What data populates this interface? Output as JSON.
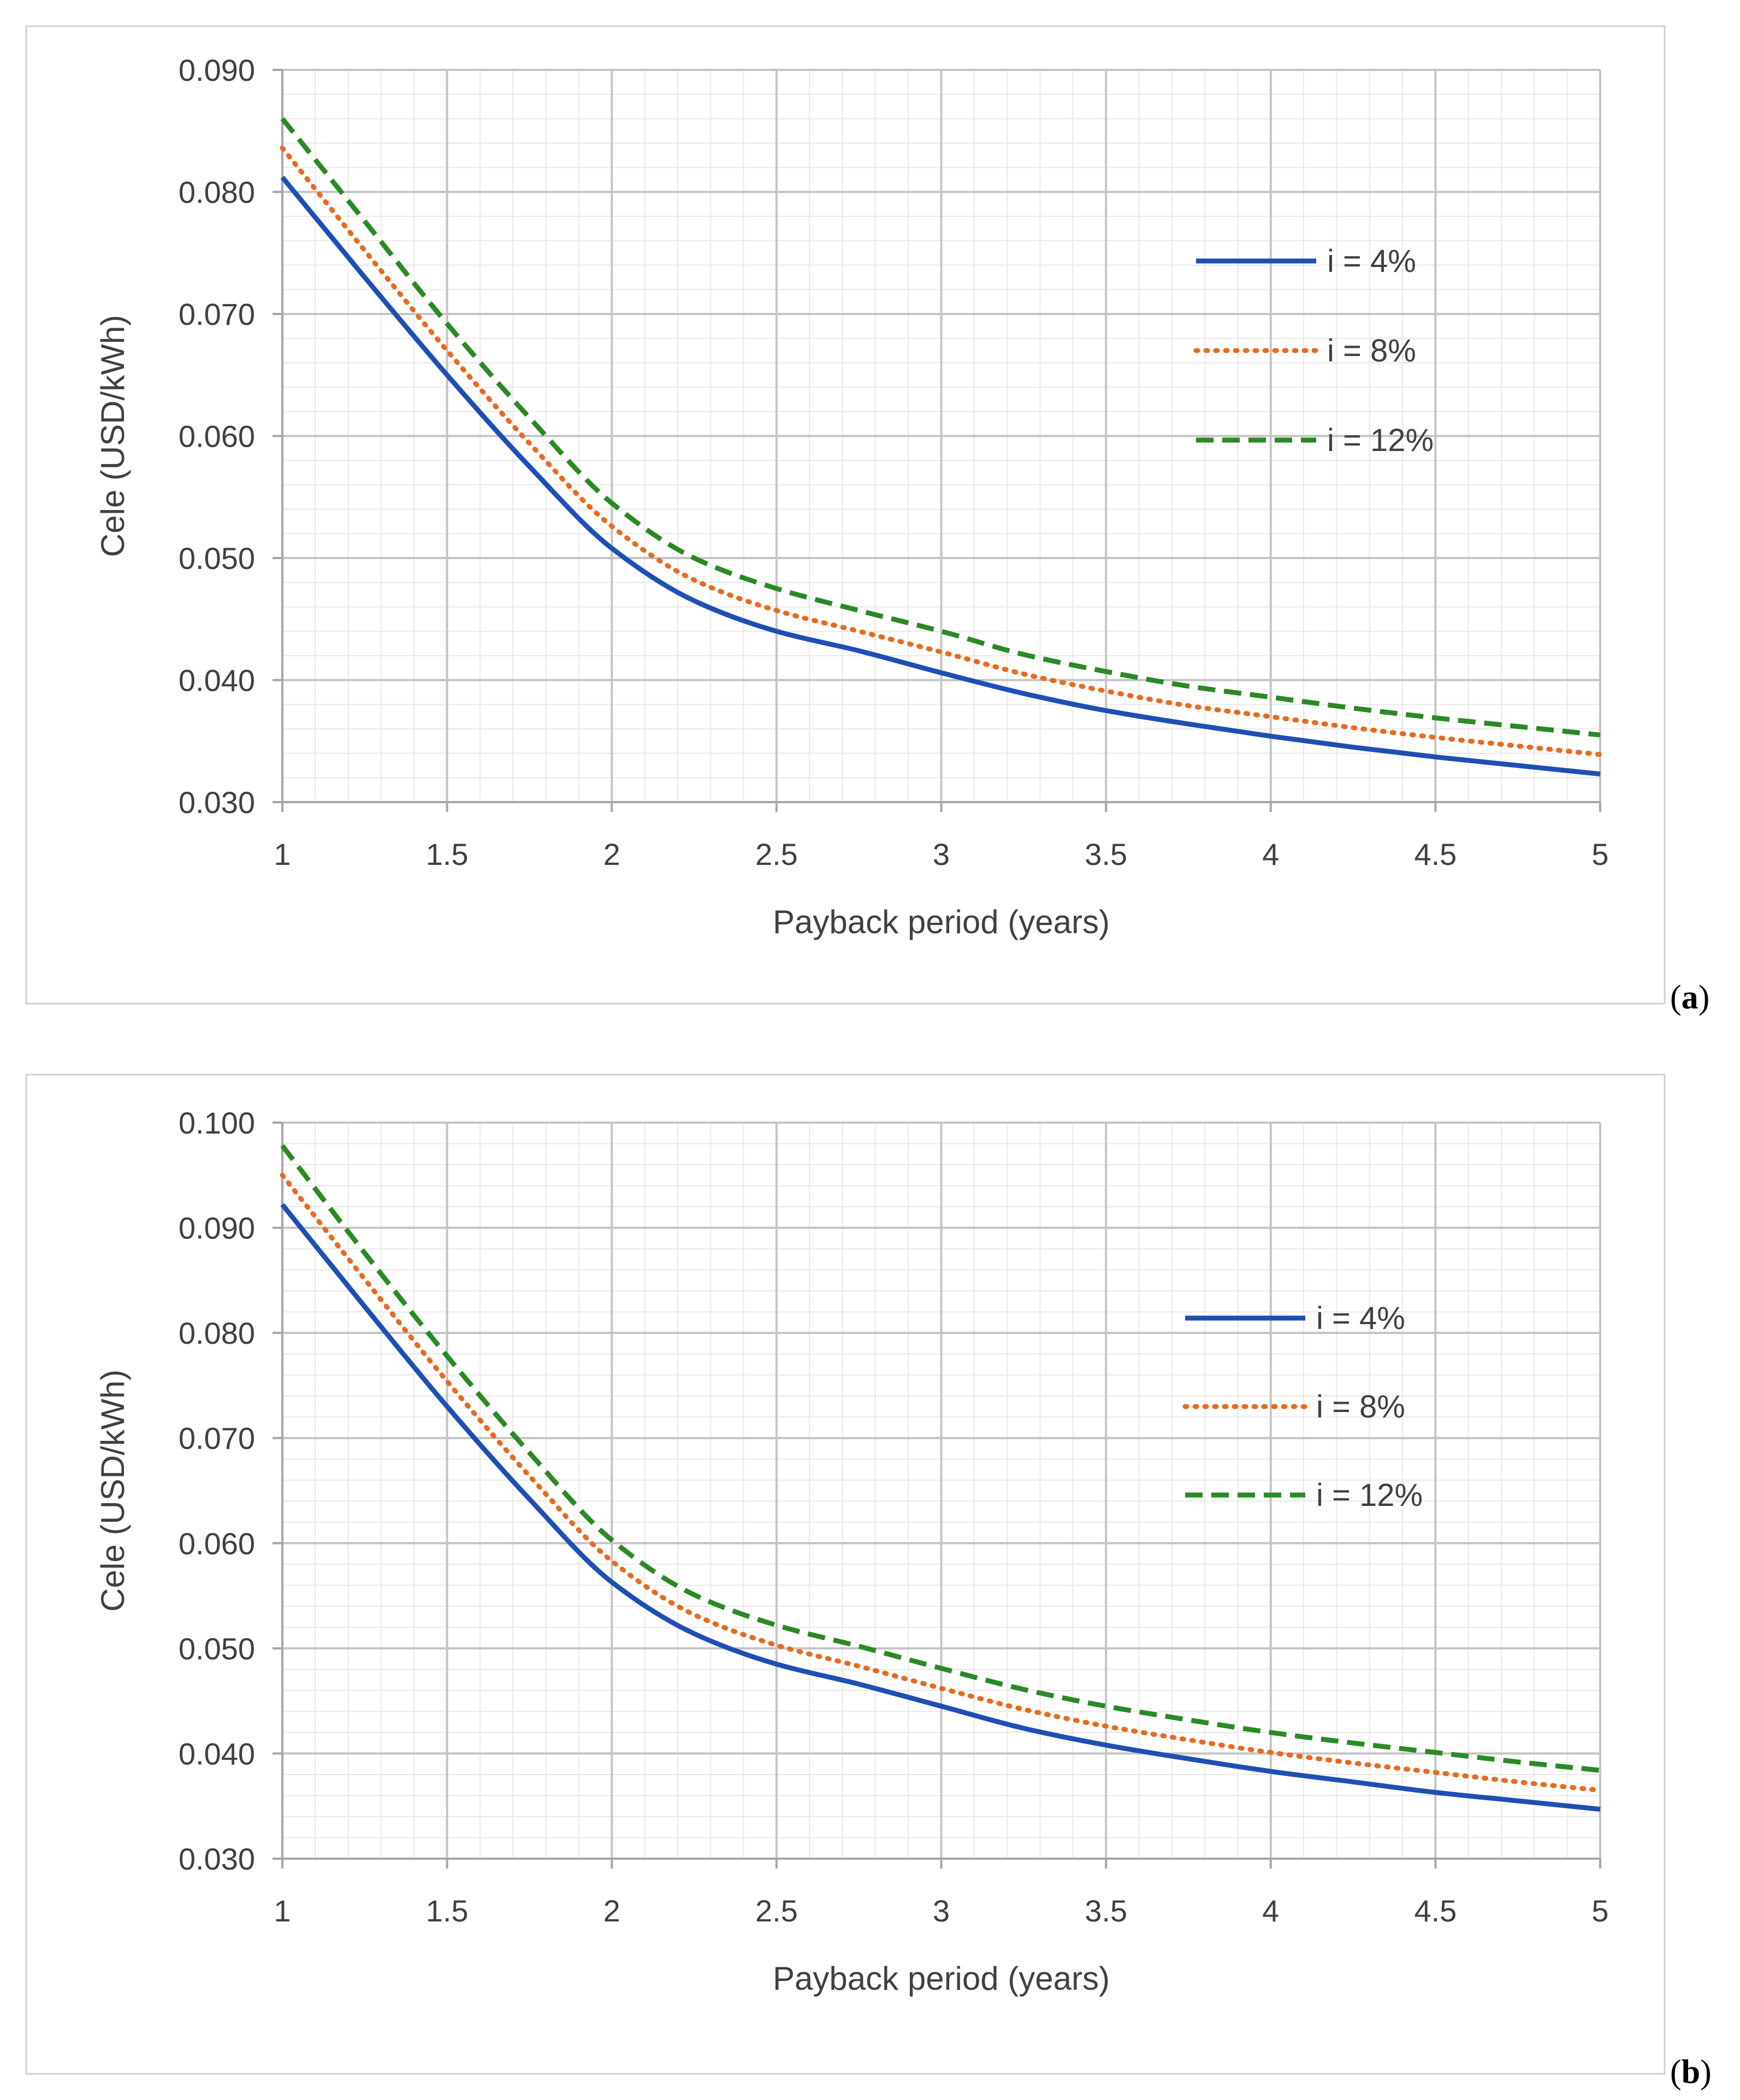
{
  "chart_data": [
    {
      "id": "a",
      "type": "line",
      "panel_label": "a",
      "xlabel": "Payback period (years)",
      "ylabel": "Cele (USD/kWh)",
      "xlim": [
        1,
        5
      ],
      "ylim": [
        0.03,
        0.09
      ],
      "x_ticks": [
        "1",
        "1.5",
        "2",
        "2.5",
        "3",
        "3.5",
        "4",
        "4.5",
        "5"
      ],
      "y_ticks": [
        "0.030",
        "0.040",
        "0.050",
        "0.060",
        "0.070",
        "0.080",
        "0.090"
      ],
      "grid": true,
      "legend_position": "top-right",
      "x": [
        1,
        1.25,
        1.5,
        1.75,
        2,
        2.25,
        2.5,
        2.75,
        3,
        3.25,
        3.5,
        3.75,
        4,
        4.25,
        4.5,
        4.75,
        5
      ],
      "series": [
        {
          "name": "i = 4%",
          "color": "#1f4fb5",
          "style": "solid",
          "values": [
            0.0812,
            0.073,
            0.065,
            0.0575,
            0.0508,
            0.0465,
            0.044,
            0.0424,
            0.0406,
            0.0389,
            0.0375,
            0.0364,
            0.0354,
            0.0345,
            0.0337,
            0.033,
            0.0323
          ]
        },
        {
          "name": "i = 8%",
          "color": "#e86a1f",
          "style": "dotted",
          "values": [
            0.0836,
            0.0752,
            0.067,
            0.0594,
            0.0526,
            0.0482,
            0.0457,
            0.044,
            0.0423,
            0.0405,
            0.0391,
            0.0379,
            0.037,
            0.0361,
            0.0353,
            0.0346,
            0.0339
          ]
        },
        {
          "name": "i = 12%",
          "color": "#2a8a24",
          "style": "dashed",
          "values": [
            0.086,
            0.0776,
            0.0692,
            0.0615,
            0.0545,
            0.05,
            0.0475,
            0.0457,
            0.044,
            0.0421,
            0.0407,
            0.0395,
            0.0386,
            0.0377,
            0.0369,
            0.0362,
            0.0355
          ]
        }
      ]
    },
    {
      "id": "b",
      "type": "line",
      "panel_label": "b",
      "xlabel": "Payback period (years)",
      "ylabel": "Cele (USD/kWh)",
      "xlim": [
        1,
        5
      ],
      "ylim": [
        0.03,
        0.1
      ],
      "x_ticks": [
        "1",
        "1.5",
        "2",
        "2.5",
        "3",
        "3.5",
        "4",
        "4.5",
        "5"
      ],
      "y_ticks": [
        "0.030",
        "0.040",
        "0.050",
        "0.060",
        "0.070",
        "0.080",
        "0.090",
        "0.100"
      ],
      "grid": true,
      "legend_position": "top-right",
      "x": [
        1,
        1.25,
        1.5,
        1.75,
        2,
        2.25,
        2.5,
        2.75,
        3,
        3.25,
        3.5,
        3.75,
        4,
        4.25,
        4.5,
        4.75,
        5
      ],
      "series": [
        {
          "name": "i = 4%",
          "color": "#1f4fb5",
          "style": "solid",
          "values": [
            0.0922,
            0.0825,
            0.073,
            0.0642,
            0.0563,
            0.0514,
            0.0485,
            0.0466,
            0.0445,
            0.0424,
            0.0408,
            0.0395,
            0.0383,
            0.0373,
            0.0363,
            0.0355,
            0.0347
          ]
        },
        {
          "name": "i = 8%",
          "color": "#e86a1f",
          "style": "dotted",
          "values": [
            0.095,
            0.0851,
            0.0754,
            0.0664,
            0.0583,
            0.0532,
            0.0503,
            0.0483,
            0.0462,
            0.0442,
            0.0426,
            0.0413,
            0.0401,
            0.0391,
            0.0382,
            0.0373,
            0.0365
          ]
        },
        {
          "name": "i = 12%",
          "color": "#2a8a24",
          "style": "dashed",
          "values": [
            0.0978,
            0.0876,
            0.0778,
            0.0686,
            0.0603,
            0.0551,
            0.0522,
            0.0502,
            0.0481,
            0.0461,
            0.0445,
            0.0432,
            0.042,
            0.041,
            0.0401,
            0.0392,
            0.0384
          ]
        }
      ]
    }
  ]
}
